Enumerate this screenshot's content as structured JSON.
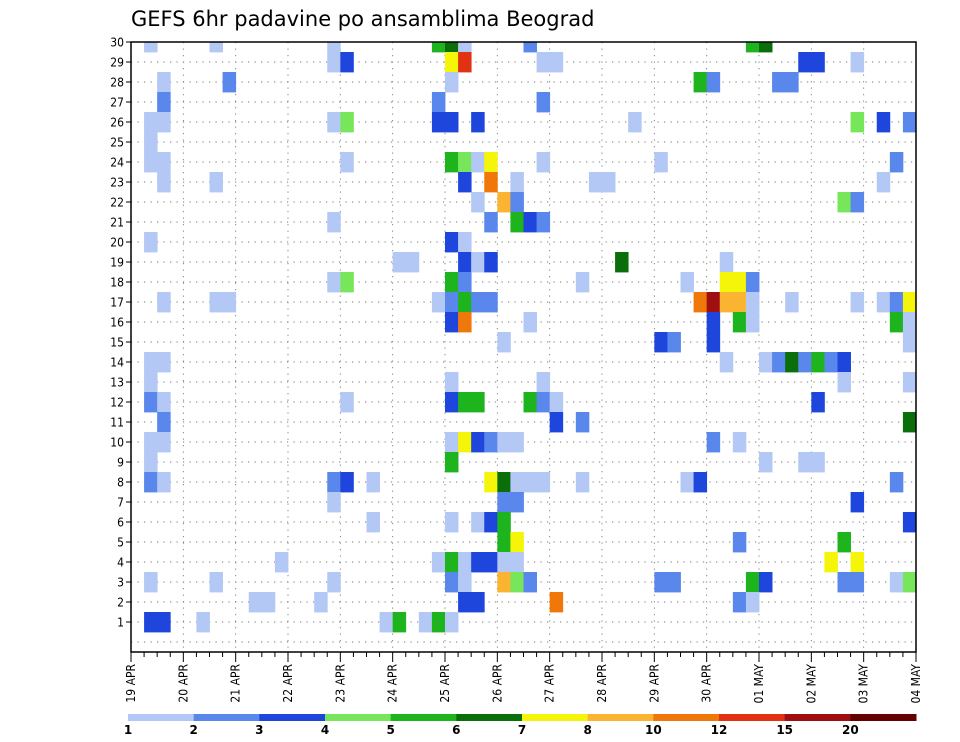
{
  "chart_data": {
    "type": "heatmap",
    "title": "GEFS 6hr padavine po ansamblima Beograd",
    "x_categories": [
      "19 APR",
      "20 APR",
      "21 APR",
      "22 APR",
      "23 APR",
      "24 APR",
      "25 APR",
      "26 APR",
      "27 APR",
      "28 APR",
      "29 APR",
      "30 APR",
      "01 MAY",
      "02 MAY",
      "03 MAY",
      "04 MAY"
    ],
    "x_steps_per_day": 4,
    "x_steps_total": 60,
    "y_members": [
      0,
      30
    ],
    "y_tick_labels": [
      "1",
      "2",
      "3",
      "4",
      "5",
      "6",
      "7",
      "8",
      "9",
      "10",
      "11",
      "12",
      "13",
      "14",
      "15",
      "16",
      "17",
      "18",
      "19",
      "20",
      "21",
      "22",
      "23",
      "24",
      "25",
      "26",
      "27",
      "28",
      "29",
      "30"
    ],
    "grid": true,
    "legend": {
      "placement": "bottom",
      "thresholds": [
        "1",
        "2",
        "3",
        "4",
        "5",
        "6",
        "7",
        "8",
        "10",
        "12",
        "15",
        "20"
      ],
      "colors": [
        "#b4c8f5",
        "#5a87eb",
        "#1e46dc",
        "#78e65a",
        "#1eb41e",
        "#0a6e0a",
        "#f5f50a",
        "#fab432",
        "#f0780a",
        "#e13214",
        "#a00f0f",
        "#640000"
      ]
    },
    "cells": [
      [
        1,
        30,
        1
      ],
      [
        6,
        30,
        1
      ],
      [
        15,
        30,
        1
      ],
      [
        23,
        30,
        5
      ],
      [
        24,
        30,
        6
      ],
      [
        25,
        30,
        1
      ],
      [
        30,
        30,
        2
      ],
      [
        47,
        30,
        5
      ],
      [
        48,
        30,
        6
      ],
      [
        15,
        29,
        1
      ],
      [
        16,
        29,
        3
      ],
      [
        24,
        29,
        7
      ],
      [
        25,
        29,
        10
      ],
      [
        31,
        29,
        1
      ],
      [
        32,
        29,
        1
      ],
      [
        51,
        29,
        3
      ],
      [
        52,
        29,
        3
      ],
      [
        55,
        29,
        1
      ],
      [
        2,
        28,
        1
      ],
      [
        7,
        28,
        2
      ],
      [
        24,
        28,
        1
      ],
      [
        43,
        28,
        5
      ],
      [
        44,
        28,
        2
      ],
      [
        49,
        28,
        2
      ],
      [
        50,
        28,
        2
      ],
      [
        2,
        27,
        2
      ],
      [
        23,
        27,
        2
      ],
      [
        31,
        27,
        2
      ],
      [
        1,
        26,
        1
      ],
      [
        2,
        26,
        1
      ],
      [
        15,
        26,
        1
      ],
      [
        16,
        26,
        4
      ],
      [
        23,
        26,
        3
      ],
      [
        24,
        26,
        3
      ],
      [
        26,
        26,
        3
      ],
      [
        38,
        26,
        1
      ],
      [
        55,
        26,
        4
      ],
      [
        57,
        26,
        3
      ],
      [
        59,
        26,
        2
      ],
      [
        1,
        25,
        1
      ],
      [
        1,
        24,
        1
      ],
      [
        2,
        24,
        1
      ],
      [
        16,
        24,
        1
      ],
      [
        24,
        24,
        5
      ],
      [
        25,
        24,
        4
      ],
      [
        26,
        24,
        1
      ],
      [
        27,
        24,
        7
      ],
      [
        31,
        24,
        1
      ],
      [
        40,
        24,
        1
      ],
      [
        58,
        24,
        2
      ],
      [
        2,
        23,
        1
      ],
      [
        6,
        23,
        1
      ],
      [
        25,
        23,
        3
      ],
      [
        27,
        23,
        9
      ],
      [
        29,
        23,
        1
      ],
      [
        35,
        23,
        1
      ],
      [
        36,
        23,
        1
      ],
      [
        57,
        23,
        1
      ],
      [
        26,
        22,
        1
      ],
      [
        28,
        22,
        8
      ],
      [
        29,
        22,
        2
      ],
      [
        54,
        22,
        4
      ],
      [
        55,
        22,
        2
      ],
      [
        15,
        21,
        1
      ],
      [
        27,
        21,
        2
      ],
      [
        29,
        21,
        5
      ],
      [
        30,
        21,
        3
      ],
      [
        31,
        21,
        2
      ],
      [
        1,
        20,
        1
      ],
      [
        24,
        20,
        3
      ],
      [
        25,
        20,
        1
      ],
      [
        20,
        19,
        1
      ],
      [
        21,
        19,
        1
      ],
      [
        25,
        19,
        3
      ],
      [
        26,
        19,
        1
      ],
      [
        27,
        19,
        3
      ],
      [
        37,
        19,
        6
      ],
      [
        45,
        19,
        1
      ],
      [
        15,
        18,
        1
      ],
      [
        16,
        18,
        4
      ],
      [
        24,
        18,
        5
      ],
      [
        25,
        18,
        2
      ],
      [
        34,
        18,
        1
      ],
      [
        42,
        18,
        1
      ],
      [
        45,
        18,
        7
      ],
      [
        46,
        18,
        7
      ],
      [
        47,
        18,
        2
      ],
      [
        2,
        17,
        1
      ],
      [
        6,
        17,
        1
      ],
      [
        7,
        17,
        1
      ],
      [
        23,
        17,
        1
      ],
      [
        24,
        17,
        2
      ],
      [
        25,
        17,
        5
      ],
      [
        26,
        17,
        2
      ],
      [
        27,
        17,
        2
      ],
      [
        43,
        17,
        9
      ],
      [
        44,
        17,
        11
      ],
      [
        45,
        17,
        8
      ],
      [
        46,
        17,
        8
      ],
      [
        47,
        17,
        1
      ],
      [
        50,
        17,
        1
      ],
      [
        55,
        17,
        1
      ],
      [
        57,
        17,
        1
      ],
      [
        58,
        17,
        2
      ],
      [
        59,
        17,
        7
      ],
      [
        24,
        16,
        3
      ],
      [
        25,
        16,
        9
      ],
      [
        30,
        16,
        1
      ],
      [
        44,
        16,
        3
      ],
      [
        46,
        16,
        5
      ],
      [
        47,
        16,
        1
      ],
      [
        58,
        16,
        5
      ],
      [
        59,
        16,
        1
      ],
      [
        28,
        15,
        1
      ],
      [
        40,
        15,
        3
      ],
      [
        41,
        15,
        2
      ],
      [
        44,
        15,
        3
      ],
      [
        59,
        15,
        1
      ],
      [
        1,
        14,
        1
      ],
      [
        2,
        14,
        1
      ],
      [
        45,
        14,
        1
      ],
      [
        48,
        14,
        1
      ],
      [
        49,
        14,
        2
      ],
      [
        50,
        14,
        6
      ],
      [
        51,
        14,
        2
      ],
      [
        52,
        14,
        5
      ],
      [
        53,
        14,
        2
      ],
      [
        54,
        14,
        3
      ],
      [
        1,
        13,
        1
      ],
      [
        24,
        13,
        1
      ],
      [
        31,
        13,
        1
      ],
      [
        54,
        13,
        1
      ],
      [
        59,
        13,
        1
      ],
      [
        1,
        12,
        2
      ],
      [
        2,
        12,
        1
      ],
      [
        16,
        12,
        1
      ],
      [
        24,
        12,
        3
      ],
      [
        25,
        12,
        5
      ],
      [
        26,
        12,
        5
      ],
      [
        30,
        12,
        5
      ],
      [
        31,
        12,
        2
      ],
      [
        32,
        12,
        1
      ],
      [
        52,
        12,
        3
      ],
      [
        2,
        11,
        2
      ],
      [
        32,
        11,
        3
      ],
      [
        34,
        11,
        2
      ],
      [
        59,
        11,
        6
      ],
      [
        1,
        10,
        1
      ],
      [
        2,
        10,
        1
      ],
      [
        24,
        10,
        1
      ],
      [
        25,
        10,
        7
      ],
      [
        26,
        10,
        3
      ],
      [
        27,
        10,
        2
      ],
      [
        28,
        10,
        1
      ],
      [
        29,
        10,
        1
      ],
      [
        44,
        10,
        2
      ],
      [
        46,
        10,
        1
      ],
      [
        1,
        9,
        1
      ],
      [
        24,
        9,
        5
      ],
      [
        48,
        9,
        1
      ],
      [
        51,
        9,
        1
      ],
      [
        52,
        9,
        1
      ],
      [
        1,
        8,
        2
      ],
      [
        2,
        8,
        1
      ],
      [
        15,
        8,
        2
      ],
      [
        16,
        8,
        3
      ],
      [
        18,
        8,
        1
      ],
      [
        27,
        8,
        7
      ],
      [
        28,
        8,
        6
      ],
      [
        29,
        8,
        1
      ],
      [
        30,
        8,
        1
      ],
      [
        31,
        8,
        1
      ],
      [
        34,
        8,
        1
      ],
      [
        42,
        8,
        1
      ],
      [
        43,
        8,
        3
      ],
      [
        58,
        8,
        2
      ],
      [
        15,
        7,
        1
      ],
      [
        28,
        7,
        2
      ],
      [
        29,
        7,
        2
      ],
      [
        55,
        7,
        3
      ],
      [
        18,
        6,
        1
      ],
      [
        24,
        6,
        1
      ],
      [
        26,
        6,
        1
      ],
      [
        27,
        6,
        3
      ],
      [
        28,
        6,
        5
      ],
      [
        59,
        6,
        3
      ],
      [
        28,
        5,
        5
      ],
      [
        29,
        5,
        7
      ],
      [
        46,
        5,
        2
      ],
      [
        54,
        5,
        5
      ],
      [
        11,
        4,
        1
      ],
      [
        23,
        4,
        1
      ],
      [
        24,
        4,
        5
      ],
      [
        25,
        4,
        1
      ],
      [
        26,
        4,
        3
      ],
      [
        27,
        4,
        3
      ],
      [
        28,
        4,
        1
      ],
      [
        29,
        4,
        1
      ],
      [
        53,
        4,
        7
      ],
      [
        55,
        4,
        7
      ],
      [
        1,
        3,
        1
      ],
      [
        6,
        3,
        1
      ],
      [
        15,
        3,
        1
      ],
      [
        24,
        3,
        2
      ],
      [
        25,
        3,
        1
      ],
      [
        28,
        3,
        8
      ],
      [
        29,
        3,
        4
      ],
      [
        30,
        3,
        2
      ],
      [
        40,
        3,
        2
      ],
      [
        41,
        3,
        2
      ],
      [
        47,
        3,
        5
      ],
      [
        48,
        3,
        3
      ],
      [
        54,
        3,
        2
      ],
      [
        55,
        3,
        2
      ],
      [
        58,
        3,
        1
      ],
      [
        59,
        3,
        4
      ],
      [
        9,
        2,
        1
      ],
      [
        10,
        2,
        1
      ],
      [
        14,
        2,
        1
      ],
      [
        25,
        2,
        3
      ],
      [
        26,
        2,
        3
      ],
      [
        32,
        2,
        9
      ],
      [
        46,
        2,
        2
      ],
      [
        47,
        2,
        1
      ],
      [
        1,
        1,
        3
      ],
      [
        2,
        1,
        3
      ],
      [
        5,
        1,
        1
      ],
      [
        19,
        1,
        1
      ],
      [
        20,
        1,
        5
      ],
      [
        22,
        1,
        1
      ],
      [
        23,
        1,
        5
      ],
      [
        24,
        1,
        1
      ]
    ]
  }
}
